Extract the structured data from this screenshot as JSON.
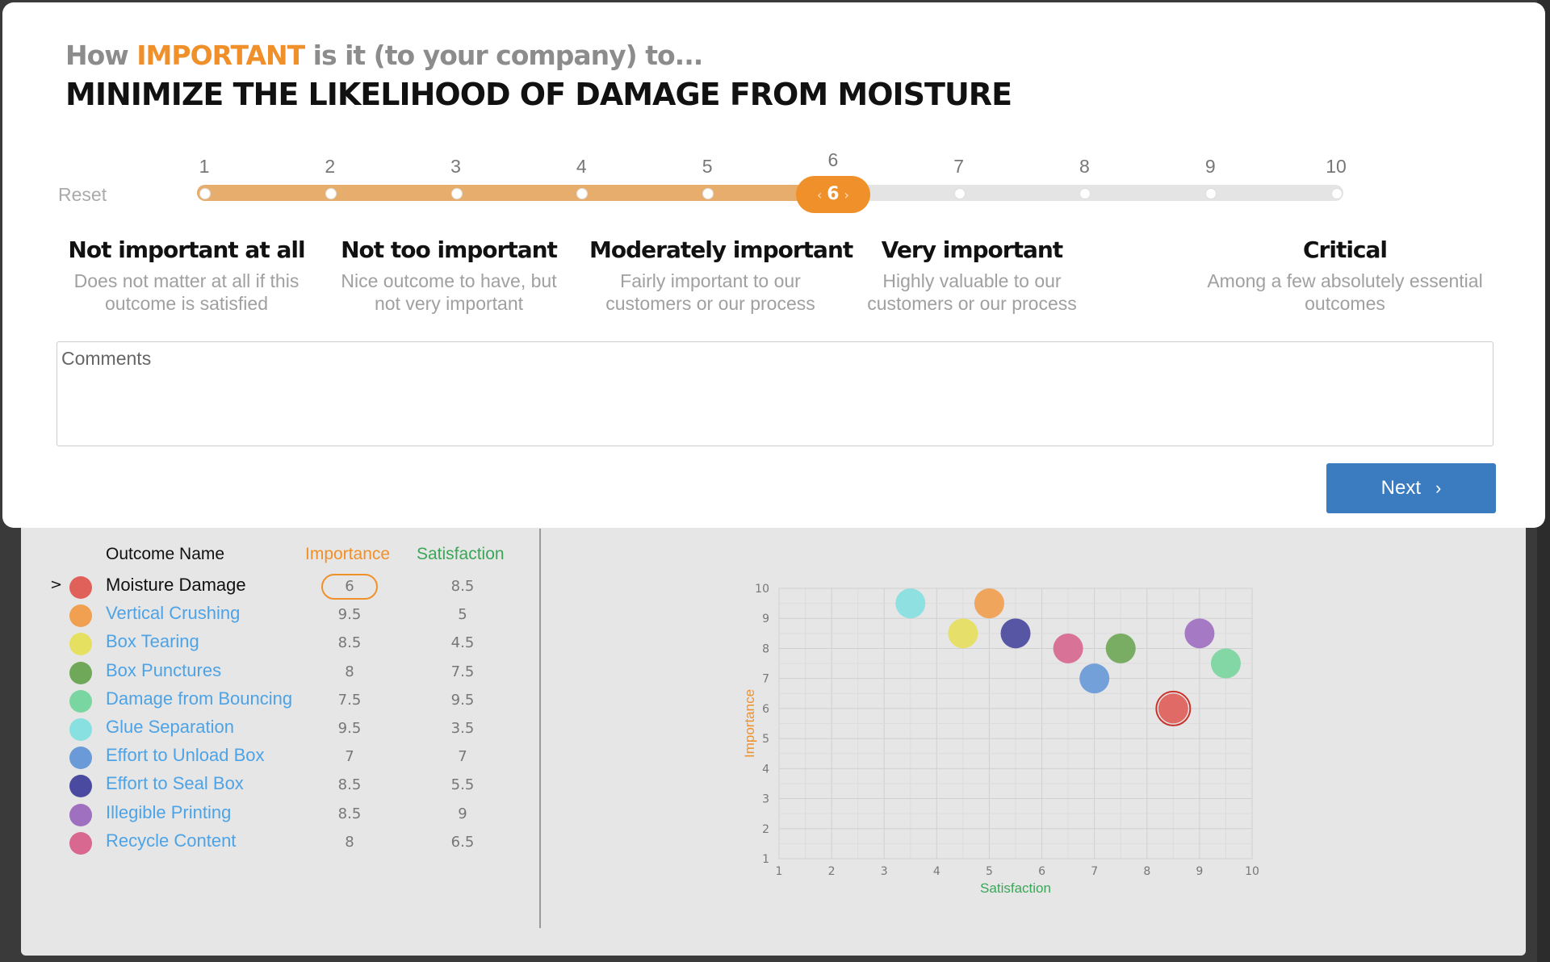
{
  "modal": {
    "question_prefix": "How ",
    "question_highlight": "IMPORTANT",
    "question_suffix": " is it (to your company) to...",
    "outcome_title": "MINIMIZE THE LIKELIHOOD OF DAMAGE FROM MOISTURE",
    "reset_label": "Reset",
    "slider": {
      "ticks": [
        "1",
        "2",
        "3",
        "4",
        "5",
        "6",
        "7",
        "8",
        "9",
        "10"
      ],
      "value": 6,
      "value_label": "6",
      "left_arrow": "‹",
      "right_arrow": "›"
    },
    "categories": [
      {
        "title": "Not important at all",
        "desc1": "Does not matter at all if this",
        "desc2": "outcome is satisfied"
      },
      {
        "title": "Not too important",
        "desc1": "Nice outcome to have, but",
        "desc2": "not very important"
      },
      {
        "title": "Moderately important",
        "desc1": "Fairly important to our",
        "desc2": "customers or our process"
      },
      {
        "title": "Very important",
        "desc1": "Highly valuable to our",
        "desc2": "customers or our process"
      },
      {
        "title": "Critical",
        "desc1": "Among a few absolutely essential",
        "desc2": "outcomes"
      }
    ],
    "comments_placeholder": "Comments",
    "next_label": "Next",
    "next_icon": "chevron-right-icon"
  },
  "table": {
    "headers": {
      "name": "Outcome Name",
      "importance": "Importance",
      "satisfaction": "Satisfaction"
    },
    "active_marker": ">",
    "rows": [
      {
        "name": "Moisture Damage",
        "importance": "6",
        "satisfaction": "8.5",
        "color": "#e0605a",
        "active": true
      },
      {
        "name": "Vertical Crushing",
        "importance": "9.5",
        "satisfaction": "5",
        "color": "#f0a050",
        "active": false
      },
      {
        "name": "Box Tearing",
        "importance": "8.5",
        "satisfaction": "4.5",
        "color": "#e6e060",
        "active": false
      },
      {
        "name": "Box Punctures",
        "importance": "8",
        "satisfaction": "7.5",
        "color": "#6fa858",
        "active": false
      },
      {
        "name": "Damage from Bouncing",
        "importance": "7.5",
        "satisfaction": "9.5",
        "color": "#7ad6a0",
        "active": false
      },
      {
        "name": "Glue Separation",
        "importance": "9.5",
        "satisfaction": "3.5",
        "color": "#88e0e0",
        "active": false
      },
      {
        "name": "Effort to Unload Box",
        "importance": "7",
        "satisfaction": "7",
        "color": "#6a9ad8",
        "active": false
      },
      {
        "name": "Effort to Seal Box",
        "importance": "8.5",
        "satisfaction": "5.5",
        "color": "#4a4aa0",
        "active": false
      },
      {
        "name": "Illegible Printing",
        "importance": "8.5",
        "satisfaction": "9",
        "color": "#a070c0",
        "active": false
      },
      {
        "name": "Recycle Content",
        "importance": "8",
        "satisfaction": "6.5",
        "color": "#d86890",
        "active": false
      }
    ]
  },
  "chart_data": {
    "type": "scatter",
    "xlabel": "Satisfaction",
    "ylabel": "Importance",
    "xlim": [
      1,
      10
    ],
    "ylim": [
      1,
      10
    ],
    "x_ticks": [
      "1",
      "2",
      "3",
      "4",
      "5",
      "6",
      "7",
      "8",
      "9",
      "10"
    ],
    "y_ticks": [
      "1",
      "2",
      "3",
      "4",
      "5",
      "6",
      "7",
      "8",
      "9",
      "10"
    ],
    "grid": true,
    "xlabel_color": "#3aa658",
    "ylabel_color": "#f0902a",
    "points": [
      {
        "x": 8.5,
        "y": 6,
        "color": "#e0605a",
        "highlight": true
      },
      {
        "x": 5,
        "y": 9.5,
        "color": "#f0a050"
      },
      {
        "x": 4.5,
        "y": 8.5,
        "color": "#e6e060"
      },
      {
        "x": 7.5,
        "y": 8,
        "color": "#6fa858"
      },
      {
        "x": 9.5,
        "y": 7.5,
        "color": "#7ad6a0"
      },
      {
        "x": 3.5,
        "y": 9.5,
        "color": "#88e0e0"
      },
      {
        "x": 7,
        "y": 7,
        "color": "#6a9ad8"
      },
      {
        "x": 5.5,
        "y": 8.5,
        "color": "#4a4aa0"
      },
      {
        "x": 9,
        "y": 8.5,
        "color": "#a070c0"
      },
      {
        "x": 6.5,
        "y": 8,
        "color": "#d86890"
      }
    ]
  }
}
